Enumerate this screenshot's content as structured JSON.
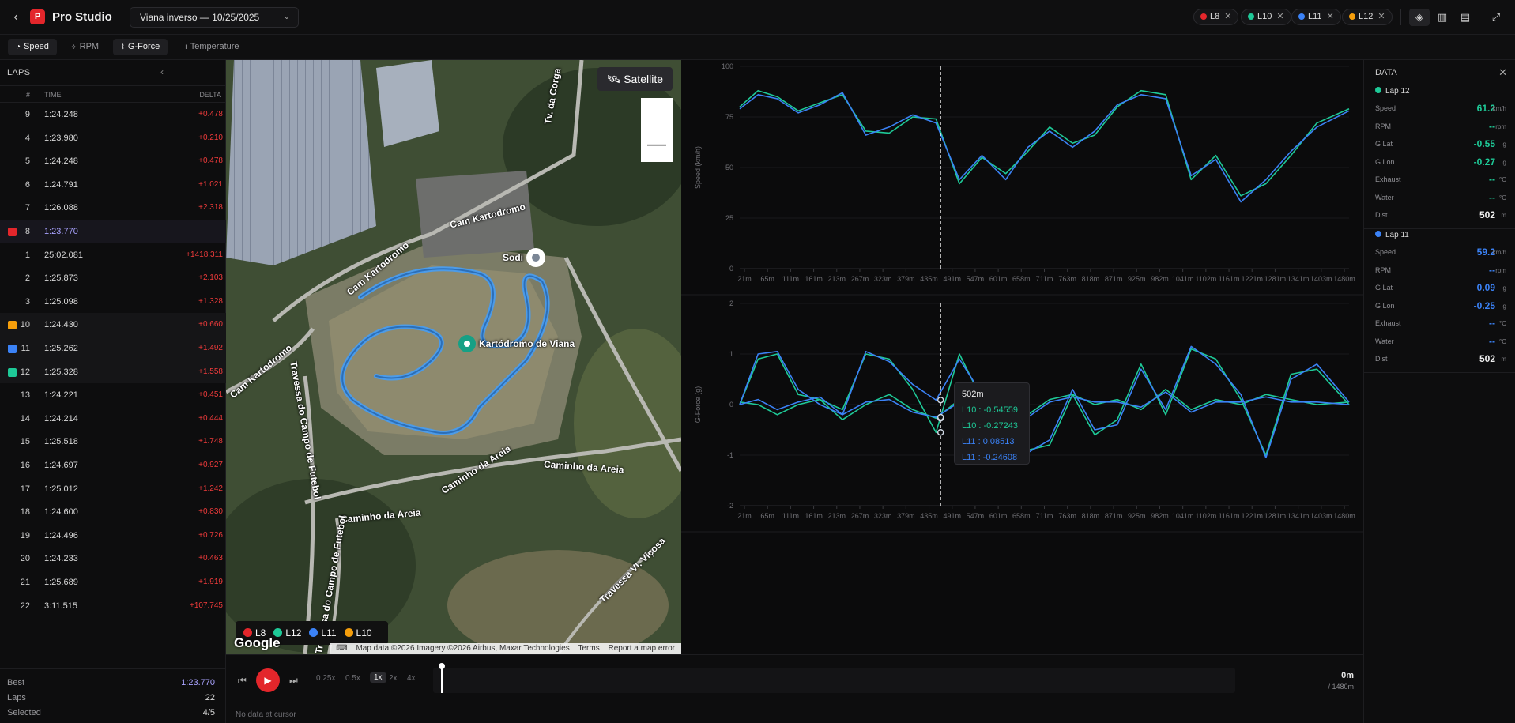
{
  "header": {
    "app_title": "Pro Studio",
    "logo_letter": "P",
    "session": "Viana inverso — 10/25/2025",
    "chips": [
      {
        "label": "L8",
        "color": "#e3262b"
      },
      {
        "label": "L10",
        "color": "#1ec997"
      },
      {
        "label": "L11",
        "color": "#3b82f6"
      },
      {
        "label": "L12",
        "color": "#f59e0b"
      }
    ]
  },
  "tabs": [
    {
      "label": "Speed",
      "icon": "gauge-icon",
      "active": true
    },
    {
      "label": "RPM",
      "icon": "rpm-icon",
      "active": false
    },
    {
      "label": "G-Force",
      "icon": "gforce-icon",
      "active": true
    },
    {
      "label": "Temperature",
      "icon": "thermometer-icon",
      "active": false
    }
  ],
  "laps": {
    "title": "LAPS",
    "col_num": "#",
    "col_time": "TIME",
    "col_delta": "DELTA",
    "rows": [
      {
        "num": "9",
        "time": "1:24.248",
        "delta": "+0.478",
        "color": ""
      },
      {
        "num": "4",
        "time": "1:23.980",
        "delta": "+0.210",
        "color": ""
      },
      {
        "num": "5",
        "time": "1:24.248",
        "delta": "+0.478",
        "color": ""
      },
      {
        "num": "6",
        "time": "1:24.791",
        "delta": "+1.021",
        "color": ""
      },
      {
        "num": "7",
        "time": "1:26.088",
        "delta": "+2.318",
        "color": ""
      },
      {
        "num": "8",
        "time": "1:23.770",
        "delta": "",
        "color": "#e3262b",
        "best": true
      },
      {
        "num": "1",
        "time": "25:02.081",
        "delta": "+1418.311",
        "color": ""
      },
      {
        "num": "2",
        "time": "1:25.873",
        "delta": "+2.103",
        "color": ""
      },
      {
        "num": "3",
        "time": "1:25.098",
        "delta": "+1.328",
        "color": ""
      },
      {
        "num": "10",
        "time": "1:24.430",
        "delta": "+0.660",
        "color": "#f59e0b"
      },
      {
        "num": "11",
        "time": "1:25.262",
        "delta": "+1.492",
        "color": "#3b82f6"
      },
      {
        "num": "12",
        "time": "1:25.328",
        "delta": "+1.558",
        "color": "#1ec997"
      },
      {
        "num": "13",
        "time": "1:24.221",
        "delta": "+0.451",
        "color": ""
      },
      {
        "num": "14",
        "time": "1:24.214",
        "delta": "+0.444",
        "color": ""
      },
      {
        "num": "15",
        "time": "1:25.518",
        "delta": "+1.748",
        "color": ""
      },
      {
        "num": "16",
        "time": "1:24.697",
        "delta": "+0.927",
        "color": ""
      },
      {
        "num": "17",
        "time": "1:25.012",
        "delta": "+1.242",
        "color": ""
      },
      {
        "num": "18",
        "time": "1:24.600",
        "delta": "+0.830",
        "color": ""
      },
      {
        "num": "19",
        "time": "1:24.496",
        "delta": "+0.726",
        "color": ""
      },
      {
        "num": "20",
        "time": "1:24.233",
        "delta": "+0.463",
        "color": ""
      },
      {
        "num": "21",
        "time": "1:25.689",
        "delta": "+1.919",
        "color": ""
      },
      {
        "num": "22",
        "time": "3:11.515",
        "delta": "+107.745",
        "color": ""
      }
    ],
    "footer": {
      "best_label": "Best",
      "best_value": "1:23.770",
      "laps_label": "Laps",
      "laps_value": "22",
      "selected_label": "Selected",
      "selected_value": "4/5"
    }
  },
  "map": {
    "satellite_label": "Satellite",
    "zoom_out_label": "—",
    "labels": {
      "tv_corga": "Tv. da Corga",
      "cam_kart1": "Cam Kartodromo",
      "cam_kart2": "Cam Kartodromo",
      "sodi": "Sodi",
      "kartodromo": "Kartódromo de Viana",
      "cam_kart3": "Cam Kartodromo",
      "travessa": "Travessa do Campo de Futebol",
      "caminho1": "Caminho da Areia",
      "caminho2": "Caminho da Areia",
      "caminho3": "Caminho da Areia",
      "travessa2": "Travessa do Campo de Futebol",
      "travessa3": "Travessa Vl. Viçosa"
    },
    "legend": [
      {
        "label": "L8",
        "color": "#e3262b"
      },
      {
        "label": "L12",
        "color": "#1ec997"
      },
      {
        "label": "L11",
        "color": "#3b82f6"
      },
      {
        "label": "L10",
        "color": "#f59e0b"
      }
    ],
    "google": "Google",
    "attribution": "Map data ©2026 Imagery ©2026 Airbus, Maxar Technologies",
    "terms": "Terms",
    "report": "Report a map error"
  },
  "chart_data": [
    {
      "type": "line",
      "ylabel": "Speed (km/h)",
      "ylim": [
        0,
        100
      ],
      "yticks": [
        "0",
        "25",
        "50",
        "75",
        "100"
      ],
      "xticks": [
        "21m",
        "65m",
        "111m",
        "161m",
        "213m",
        "267m",
        "323m",
        "379m",
        "435m",
        "491m",
        "547m",
        "601m",
        "658m",
        "711m",
        "763m",
        "818m",
        "871m",
        "925m",
        "982m",
        "1041m",
        "1102m",
        "1161m",
        "1221m",
        "1281m",
        "1341m",
        "1403m",
        "1480m"
      ],
      "xlim": [
        21,
        1480
      ],
      "cursor_x": 502,
      "series": [
        {
          "name": "L12",
          "color": "#1ec997",
          "x": [
            21,
            65,
            111,
            161,
            213,
            267,
            323,
            379,
            435,
            491,
            547,
            601,
            658,
            711,
            763,
            818,
            871,
            925,
            982,
            1041,
            1102,
            1161,
            1221,
            1281,
            1341,
            1403,
            1480
          ],
          "y": [
            80,
            88,
            85,
            78,
            82,
            86,
            68,
            67,
            75,
            74,
            42,
            55,
            47,
            58,
            70,
            62,
            66,
            80,
            88,
            86,
            44,
            56,
            36,
            42,
            56,
            72,
            79
          ]
        },
        {
          "name": "L11",
          "color": "#3b82f6",
          "x": [
            21,
            65,
            111,
            161,
            213,
            267,
            323,
            379,
            435,
            491,
            547,
            601,
            658,
            711,
            763,
            818,
            871,
            925,
            982,
            1041,
            1102,
            1161,
            1221,
            1281,
            1341,
            1403,
            1480
          ],
          "y": [
            79,
            86,
            84,
            77,
            81,
            87,
            66,
            70,
            76,
            72,
            44,
            56,
            44,
            60,
            68,
            60,
            68,
            81,
            86,
            84,
            46,
            54,
            33,
            44,
            58,
            70,
            78
          ]
        }
      ]
    },
    {
      "type": "line",
      "ylabel": "G-Force (g)",
      "ylim": [
        -2,
        2
      ],
      "yticks": [
        "-2",
        "-1",
        "0",
        "1",
        "2"
      ],
      "xticks": [
        "21m",
        "65m",
        "111m",
        "161m",
        "213m",
        "267m",
        "323m",
        "379m",
        "435m",
        "491m",
        "547m",
        "601m",
        "658m",
        "711m",
        "763m",
        "818m",
        "871m",
        "925m",
        "982m",
        "1041m",
        "1102m",
        "1161m",
        "1221m",
        "1281m",
        "1341m",
        "1403m",
        "1480m"
      ],
      "xlim": [
        21,
        1480
      ],
      "cursor_x": 502,
      "series": [
        {
          "name": "L10 lat",
          "color": "#1ec997",
          "x": [
            21,
            65,
            111,
            161,
            213,
            267,
            323,
            379,
            435,
            491,
            547,
            601,
            658,
            711,
            763,
            818,
            871,
            925,
            982,
            1041,
            1102,
            1161,
            1221,
            1281,
            1341,
            1403,
            1480
          ],
          "y": [
            0,
            0.9,
            1.0,
            0.2,
            0.1,
            -0.1,
            1.0,
            0.9,
            0.3,
            -0.55,
            1.0,
            0.1,
            -0.3,
            -0.9,
            -0.8,
            0.2,
            -0.6,
            -0.3,
            0.8,
            -0.2,
            1.1,
            0.9,
            0.1,
            -1.0,
            0.6,
            0.7,
            0
          ]
        },
        {
          "name": "L10 lon",
          "color": "#1ec997",
          "x": [
            21,
            65,
            111,
            161,
            213,
            267,
            323,
            379,
            435,
            491,
            547,
            601,
            658,
            711,
            763,
            818,
            871,
            925,
            982,
            1041,
            1102,
            1161,
            1221,
            1281,
            1341,
            1403,
            1480
          ],
          "y": [
            0.05,
            0,
            -0.2,
            0,
            0.1,
            -0.3,
            0,
            0.2,
            -0.1,
            -0.27,
            0.1,
            -0.1,
            0.2,
            -0.2,
            0.1,
            0.2,
            0,
            0.1,
            -0.1,
            0.3,
            -0.1,
            0.1,
            0,
            0.2,
            0.1,
            0,
            0.05
          ]
        },
        {
          "name": "L11 lat",
          "color": "#3b82f6",
          "x": [
            21,
            65,
            111,
            161,
            213,
            267,
            323,
            379,
            435,
            491,
            547,
            601,
            658,
            711,
            763,
            818,
            871,
            925,
            982,
            1041,
            1102,
            1161,
            1221,
            1281,
            1341,
            1403,
            1480
          ],
          "y": [
            0,
            1.0,
            1.05,
            0.3,
            0,
            -0.2,
            1.05,
            0.85,
            0.4,
            0.09,
            0.9,
            0.2,
            -0.4,
            -0.95,
            -0.7,
            0.3,
            -0.5,
            -0.4,
            0.7,
            -0.1,
            1.15,
            0.8,
            0.2,
            -1.05,
            0.5,
            0.8,
            0.05
          ]
        },
        {
          "name": "L11 lon",
          "color": "#3b82f6",
          "x": [
            21,
            65,
            111,
            161,
            213,
            267,
            323,
            379,
            435,
            491,
            547,
            601,
            658,
            711,
            763,
            818,
            871,
            925,
            982,
            1041,
            1102,
            1161,
            1221,
            1281,
            1341,
            1403,
            1480
          ],
          "y": [
            0,
            0.1,
            -0.1,
            0.05,
            0.15,
            -0.2,
            0.05,
            0.1,
            -0.15,
            -0.25,
            0.05,
            -0.05,
            0.15,
            -0.25,
            0.05,
            0.15,
            0.05,
            0.05,
            -0.05,
            0.25,
            -0.15,
            0.05,
            0.05,
            0.15,
            0.05,
            0.05,
            0
          ]
        }
      ]
    }
  ],
  "tooltip": {
    "title": "502m",
    "rows": [
      {
        "text": "L10 : -0.54559",
        "color": "#1ec997"
      },
      {
        "text": "L10 : -0.27243",
        "color": "#1ec997"
      },
      {
        "text": "L11 : 0.08513",
        "color": "#3b82f6"
      },
      {
        "text": "L11 : -0.24608",
        "color": "#3b82f6"
      }
    ]
  },
  "data_panel": {
    "title": "DATA",
    "sections": [
      {
        "lap": "Lap 12",
        "color": "#1ec997",
        "rows": [
          {
            "k": "Speed",
            "v": "61.2",
            "u": "km/h"
          },
          {
            "k": "RPM",
            "v": "--",
            "u": "rpm"
          },
          {
            "k": "G Lat",
            "v": "-0.55",
            "u": "g"
          },
          {
            "k": "G Lon",
            "v": "-0.27",
            "u": "g"
          },
          {
            "k": "Exhaust",
            "v": "--",
            "u": "°C"
          },
          {
            "k": "Water",
            "v": "--",
            "u": "°C"
          },
          {
            "k": "Dist",
            "v": "502",
            "u": "m",
            "white": true
          }
        ]
      },
      {
        "lap": "Lap 11",
        "color": "#3b82f6",
        "rows": [
          {
            "k": "Speed",
            "v": "59.2",
            "u": "km/h"
          },
          {
            "k": "RPM",
            "v": "--",
            "u": "rpm"
          },
          {
            "k": "G Lat",
            "v": "0.09",
            "u": "g"
          },
          {
            "k": "G Lon",
            "v": "-0.25",
            "u": "g"
          },
          {
            "k": "Exhaust",
            "v": "--",
            "u": "°C"
          },
          {
            "k": "Water",
            "v": "--",
            "u": "°C"
          },
          {
            "k": "Dist",
            "v": "502",
            "u": "m",
            "white": true
          }
        ]
      }
    ]
  },
  "playback": {
    "speeds": [
      "0.25x",
      "0.5x",
      "1x",
      "2x",
      "4x"
    ],
    "active_speed": "1x",
    "position": "0m",
    "total": "/ 1480m",
    "status": "No data at cursor"
  }
}
